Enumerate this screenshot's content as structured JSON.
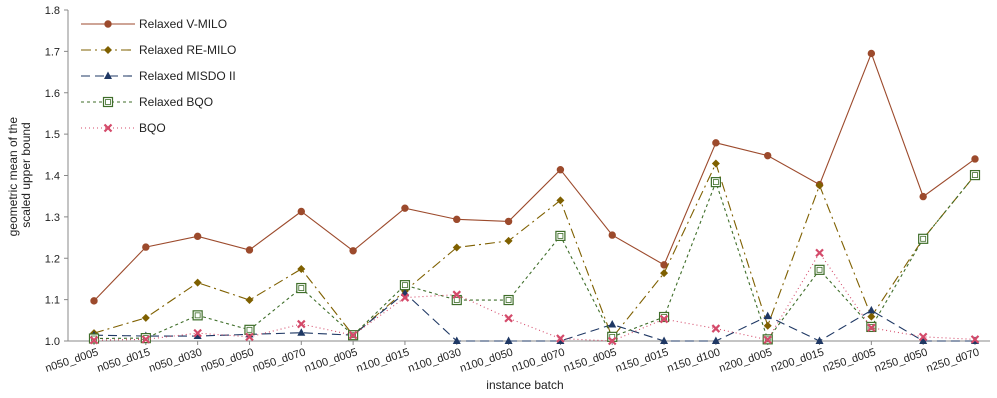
{
  "chart_data": {
    "type": "line",
    "title": "",
    "xlabel": "instance batch",
    "ylabel": [
      "geometric mean of the",
      "scaled upper bound"
    ],
    "ylim": [
      1.0,
      1.8
    ],
    "yticks": [
      "1.0",
      "1.1",
      "1.2",
      "1.3",
      "1.4",
      "1.5",
      "1.6",
      "1.7",
      "1.8"
    ],
    "grid": false,
    "legend_position": "top-left",
    "categories": [
      "n050_d005",
      "n050_d015",
      "n050_d030",
      "n050_d050",
      "n050_d070",
      "n100_d005",
      "n100_d015",
      "n100_d030",
      "n100_d050",
      "n100_d070",
      "n150_d005",
      "n150_d015",
      "n150_d100",
      "n200_d005",
      "n200_d015",
      "n250_d005",
      "n250_d050",
      "n250_d070"
    ],
    "series": [
      {
        "name": "Relaxed V-MILO",
        "color": "#9C4A2C",
        "dash": "",
        "marker": "circle",
        "values": [
          1.097,
          1.227,
          1.253,
          1.22,
          1.313,
          1.218,
          1.321,
          1.294,
          1.289,
          1.414,
          1.256,
          1.184,
          1.479,
          1.448,
          1.378,
          1.695,
          1.349,
          1.44
        ]
      },
      {
        "name": "Relaxed RE-MILO",
        "color": "#7F6000",
        "dash": "10,4,2,4",
        "marker": "diamond",
        "values": [
          1.019,
          1.056,
          1.141,
          1.099,
          1.174,
          1.014,
          1.121,
          1.226,
          1.242,
          1.34,
          1.008,
          1.164,
          1.429,
          1.037,
          1.376,
          1.059,
          1.247,
          1.401
        ]
      },
      {
        "name": "Relaxed MISDO II",
        "color": "#1F3864",
        "dash": "9,5",
        "marker": "triangle",
        "values": [
          1.014,
          1.012,
          1.012,
          1.016,
          1.02,
          1.014,
          1.116,
          1.0,
          1.0,
          1.0,
          1.04,
          1.0,
          1.0,
          1.06,
          1.0,
          1.074,
          1.0,
          1.0
        ]
      },
      {
        "name": "Relaxed BQO",
        "color": "#3F6E2A",
        "dash": "3,3",
        "marker": "square",
        "values": [
          1.006,
          1.007,
          1.062,
          1.027,
          1.128,
          1.014,
          1.135,
          1.099,
          1.099,
          1.254,
          1.01,
          1.058,
          1.384,
          1.004,
          1.172,
          1.034,
          1.247,
          1.401
        ]
      },
      {
        "name": "BQO",
        "color": "#D44A6A",
        "dash": "1,3",
        "marker": "x",
        "values": [
          1.002,
          1.004,
          1.019,
          1.01,
          1.041,
          1.014,
          1.105,
          1.112,
          1.055,
          1.006,
          1.0,
          1.053,
          1.03,
          1.003,
          1.213,
          1.032,
          1.01,
          1.004
        ]
      }
    ]
  }
}
